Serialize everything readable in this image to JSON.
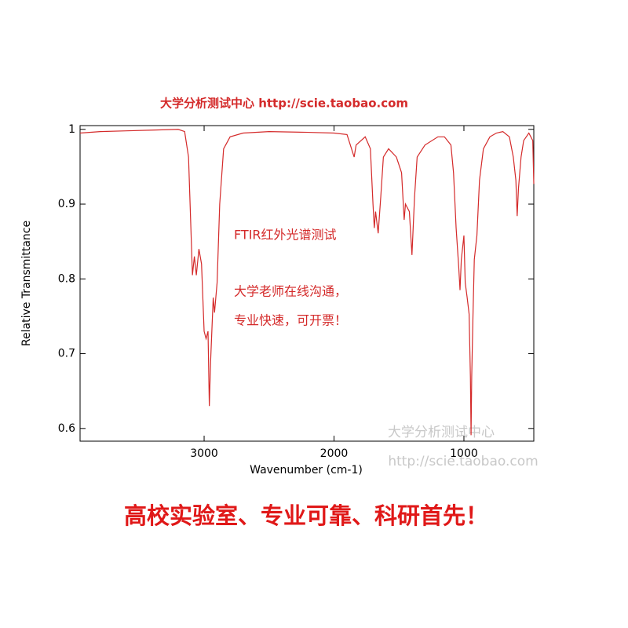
{
  "chart_data": {
    "type": "line",
    "title": "大学分析测试中心 http://scie.taobao.com",
    "x_label": "Wavenumber (cm-1)",
    "y_label": "Relative Transmittance",
    "annotations": [
      "FTIR红外光谱测试",
      "大学老师在线沟通，",
      "专业快速，可开票！"
    ],
    "x": [
      3955,
      3800,
      3600,
      3400,
      3200,
      3150,
      3120,
      3100,
      3090,
      3075,
      3060,
      3040,
      3020,
      3000,
      2985,
      2970,
      2960,
      2950,
      2930,
      2920,
      2900,
      2880,
      2850,
      2800,
      2700,
      2500,
      2200,
      2000,
      1900,
      1845,
      1830,
      1760,
      1720,
      1700,
      1690,
      1680,
      1660,
      1640,
      1620,
      1580,
      1520,
      1480,
      1460,
      1450,
      1420,
      1400,
      1380,
      1360,
      1300,
      1200,
      1150,
      1100,
      1080,
      1060,
      1040,
      1030,
      1020,
      1000,
      990,
      975,
      960,
      950,
      945,
      940,
      930,
      920,
      900,
      880,
      850,
      800,
      750,
      700,
      650,
      620,
      600,
      590,
      580,
      560,
      540,
      500,
      470,
      462
    ],
    "series": [
      {
        "name": "FTIR",
        "color": "#d42a2a",
        "values": [
          0.995,
          0.997,
          0.998,
          0.999,
          1.0,
          0.997,
          0.963,
          0.858,
          0.805,
          0.83,
          0.805,
          0.84,
          0.82,
          0.73,
          0.72,
          0.73,
          0.63,
          0.69,
          0.775,
          0.755,
          0.795,
          0.9,
          0.974,
          0.99,
          0.995,
          0.997,
          0.996,
          0.995,
          0.993,
          0.963,
          0.979,
          0.99,
          0.974,
          0.9,
          0.868,
          0.89,
          0.861,
          0.91,
          0.963,
          0.974,
          0.963,
          0.942,
          0.879,
          0.9,
          0.89,
          0.832,
          0.91,
          0.963,
          0.979,
          0.99,
          0.99,
          0.979,
          0.942,
          0.868,
          0.816,
          0.785,
          0.826,
          0.858,
          0.795,
          0.775,
          0.753,
          0.669,
          0.591,
          0.669,
          0.753,
          0.826,
          0.858,
          0.932,
          0.974,
          0.99,
          0.995,
          0.997,
          0.99,
          0.963,
          0.932,
          0.884,
          0.921,
          0.963,
          0.985,
          0.995,
          0.985,
          0.927
        ]
      }
    ],
    "xlim": [
      3955,
      462
    ],
    "ylim": [
      0.583,
      1.005
    ],
    "xticks": [
      3000,
      2000,
      1000
    ],
    "yticks": [
      0.6,
      0.7,
      0.8,
      0.9,
      1
    ]
  },
  "watermark": [
    "大学分析测试中心",
    "http://scie.taobao.com"
  ],
  "slogan": "高校实验室、专业可靠、科研首先！"
}
